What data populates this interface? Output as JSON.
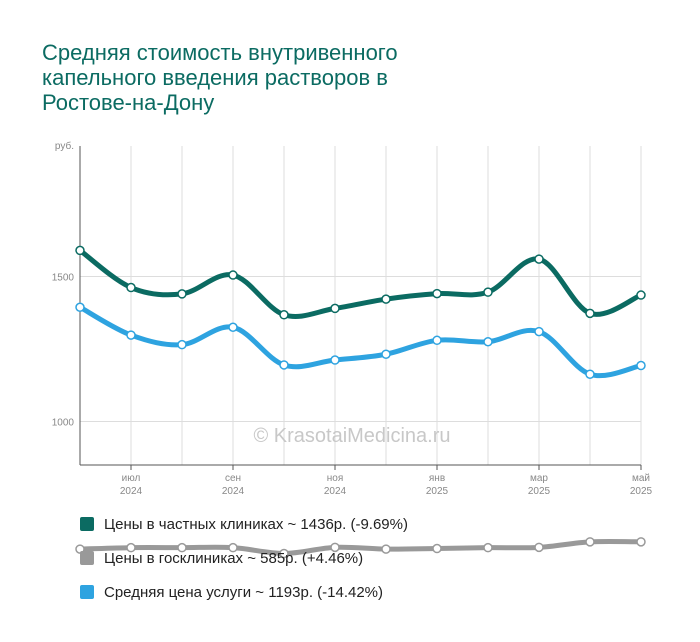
{
  "title": "Средняя стоимость внутривенного капельного введения растворов в Ростове-на-Дону",
  "watermark": "© KrasotaiMedicina.ru",
  "chart_data": {
    "type": "line",
    "y_unit_label": "руб.",
    "ylim": [
      850,
      1950
    ],
    "yticks": [
      1000,
      1500
    ],
    "x_tick_labels": [
      {
        "index": 1,
        "month": "июл",
        "year": "2024"
      },
      {
        "index": 3,
        "month": "сен",
        "year": "2024"
      },
      {
        "index": 5,
        "month": "ноя",
        "year": "2024"
      },
      {
        "index": 7,
        "month": "янв",
        "year": "2025"
      },
      {
        "index": 9,
        "month": "мар",
        "year": "2025"
      },
      {
        "index": 11,
        "month": "май",
        "year": "2025"
      }
    ],
    "x_count": 12,
    "grid": true,
    "legend_position": "bottom",
    "series": [
      {
        "name": "Цены в частных клиниках",
        "legend_text": "Цены в частных клиниках ~ 1436р. (-9.69%)",
        "color": "#0b6b62",
        "values": [
          1590,
          1462,
          1440,
          1505,
          1368,
          1390,
          1422,
          1441,
          1446,
          1560,
          1373,
          1436
        ]
      },
      {
        "name": "Цены в госклиниках",
        "legend_text": "Цены в госклиниках ~ 585р. (+4.46%)",
        "color": "#999999",
        "values": [
          560,
          565,
          565,
          565,
          545,
          566,
          560,
          562,
          565,
          566,
          585,
          585
        ]
      },
      {
        "name": "Средняя цена услуги",
        "legend_text": "Средняя цена услуги ~ 1193р. (-14.42%)",
        "color": "#2ea3e0",
        "values": [
          1394,
          1298,
          1265,
          1325,
          1195,
          1212,
          1232,
          1280,
          1275,
          1310,
          1163,
          1193
        ]
      }
    ]
  }
}
